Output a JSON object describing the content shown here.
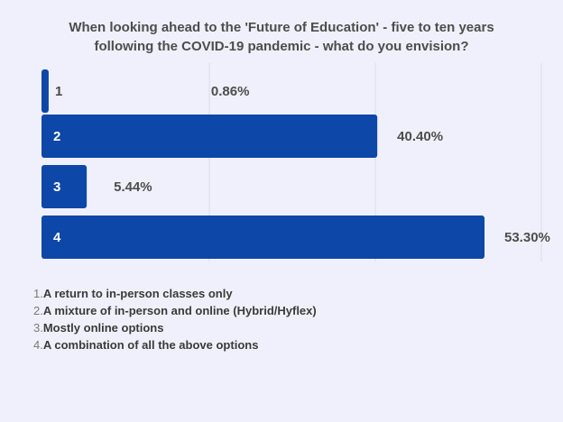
{
  "chart_data": {
    "type": "bar",
    "orientation": "horizontal",
    "title_lines": [
      "When looking ahead to the 'Future of Education' - five to ten years",
      "following the COVID-19 pandemic - what do you envision?"
    ],
    "categories": [
      "1",
      "2",
      "3",
      "4"
    ],
    "values": [
      0.86,
      40.4,
      5.44,
      53.3
    ],
    "value_labels": [
      "0.86%",
      "40.40%",
      "5.44%",
      "53.30%"
    ],
    "xlim": [
      0,
      60
    ],
    "grid": true,
    "bar_color": "#0d47a8",
    "legend": [
      {
        "num": "1.",
        "text": "A return to in-person classes only"
      },
      {
        "num": "2.",
        "text": "A mixture of in-person and online (Hybrid/Hyflex)"
      },
      {
        "num": "3.",
        "text": "Mostly online options"
      },
      {
        "num": "4.",
        "text": "A combination of all the above options"
      }
    ]
  }
}
